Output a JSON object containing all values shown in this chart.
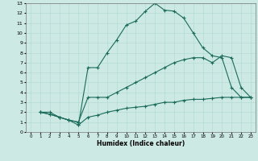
{
  "xlabel": "Humidex (Indice chaleur)",
  "xlim": [
    -0.5,
    23.5
  ],
  "ylim": [
    0,
    13
  ],
  "xticks": [
    0,
    1,
    2,
    3,
    4,
    5,
    6,
    7,
    8,
    9,
    10,
    11,
    12,
    13,
    14,
    15,
    16,
    17,
    18,
    19,
    20,
    21,
    22,
    23
  ],
  "yticks": [
    0,
    1,
    2,
    3,
    4,
    5,
    6,
    7,
    8,
    9,
    10,
    11,
    12,
    13
  ],
  "bg_color": "#cce9e4",
  "grid_color": "#b0d8d2",
  "line_color": "#1a6b5a",
  "line1_x": [
    1,
    2,
    3,
    4,
    5,
    6,
    7,
    8,
    9,
    10,
    11,
    12,
    13,
    14,
    15,
    16,
    17,
    18,
    19,
    20,
    21,
    22,
    23
  ],
  "line1_y": [
    2,
    2,
    1.5,
    1.2,
    0.7,
    6.5,
    6.5,
    8.0,
    9.3,
    10.8,
    11.2,
    12.2,
    13.0,
    12.3,
    12.2,
    11.5,
    10.0,
    8.5,
    7.7,
    7.5,
    4.5,
    3.5,
    3.5
  ],
  "line2_x": [
    1,
    2,
    3,
    4,
    5,
    6,
    7,
    8,
    9,
    10,
    11,
    12,
    13,
    14,
    15,
    16,
    17,
    18,
    19,
    20,
    21,
    22,
    23
  ],
  "line2_y": [
    2,
    1.8,
    1.5,
    1.2,
    1.0,
    3.5,
    3.5,
    3.5,
    4.0,
    4.5,
    5.0,
    5.5,
    6.0,
    6.5,
    7.0,
    7.3,
    7.5,
    7.5,
    7.0,
    7.7,
    7.5,
    4.5,
    3.5
  ],
  "line3_x": [
    1,
    2,
    3,
    4,
    5,
    5,
    6,
    7,
    8,
    9,
    10,
    11,
    12,
    13,
    14,
    15,
    16,
    17,
    18,
    19,
    20,
    21,
    22,
    23
  ],
  "line3_y": [
    2,
    1.8,
    1.5,
    1.2,
    1.0,
    0.7,
    1.5,
    1.7,
    2.0,
    2.2,
    2.4,
    2.5,
    2.6,
    2.8,
    3.0,
    3.0,
    3.2,
    3.3,
    3.3,
    3.4,
    3.5,
    3.5,
    3.5,
    3.5
  ]
}
